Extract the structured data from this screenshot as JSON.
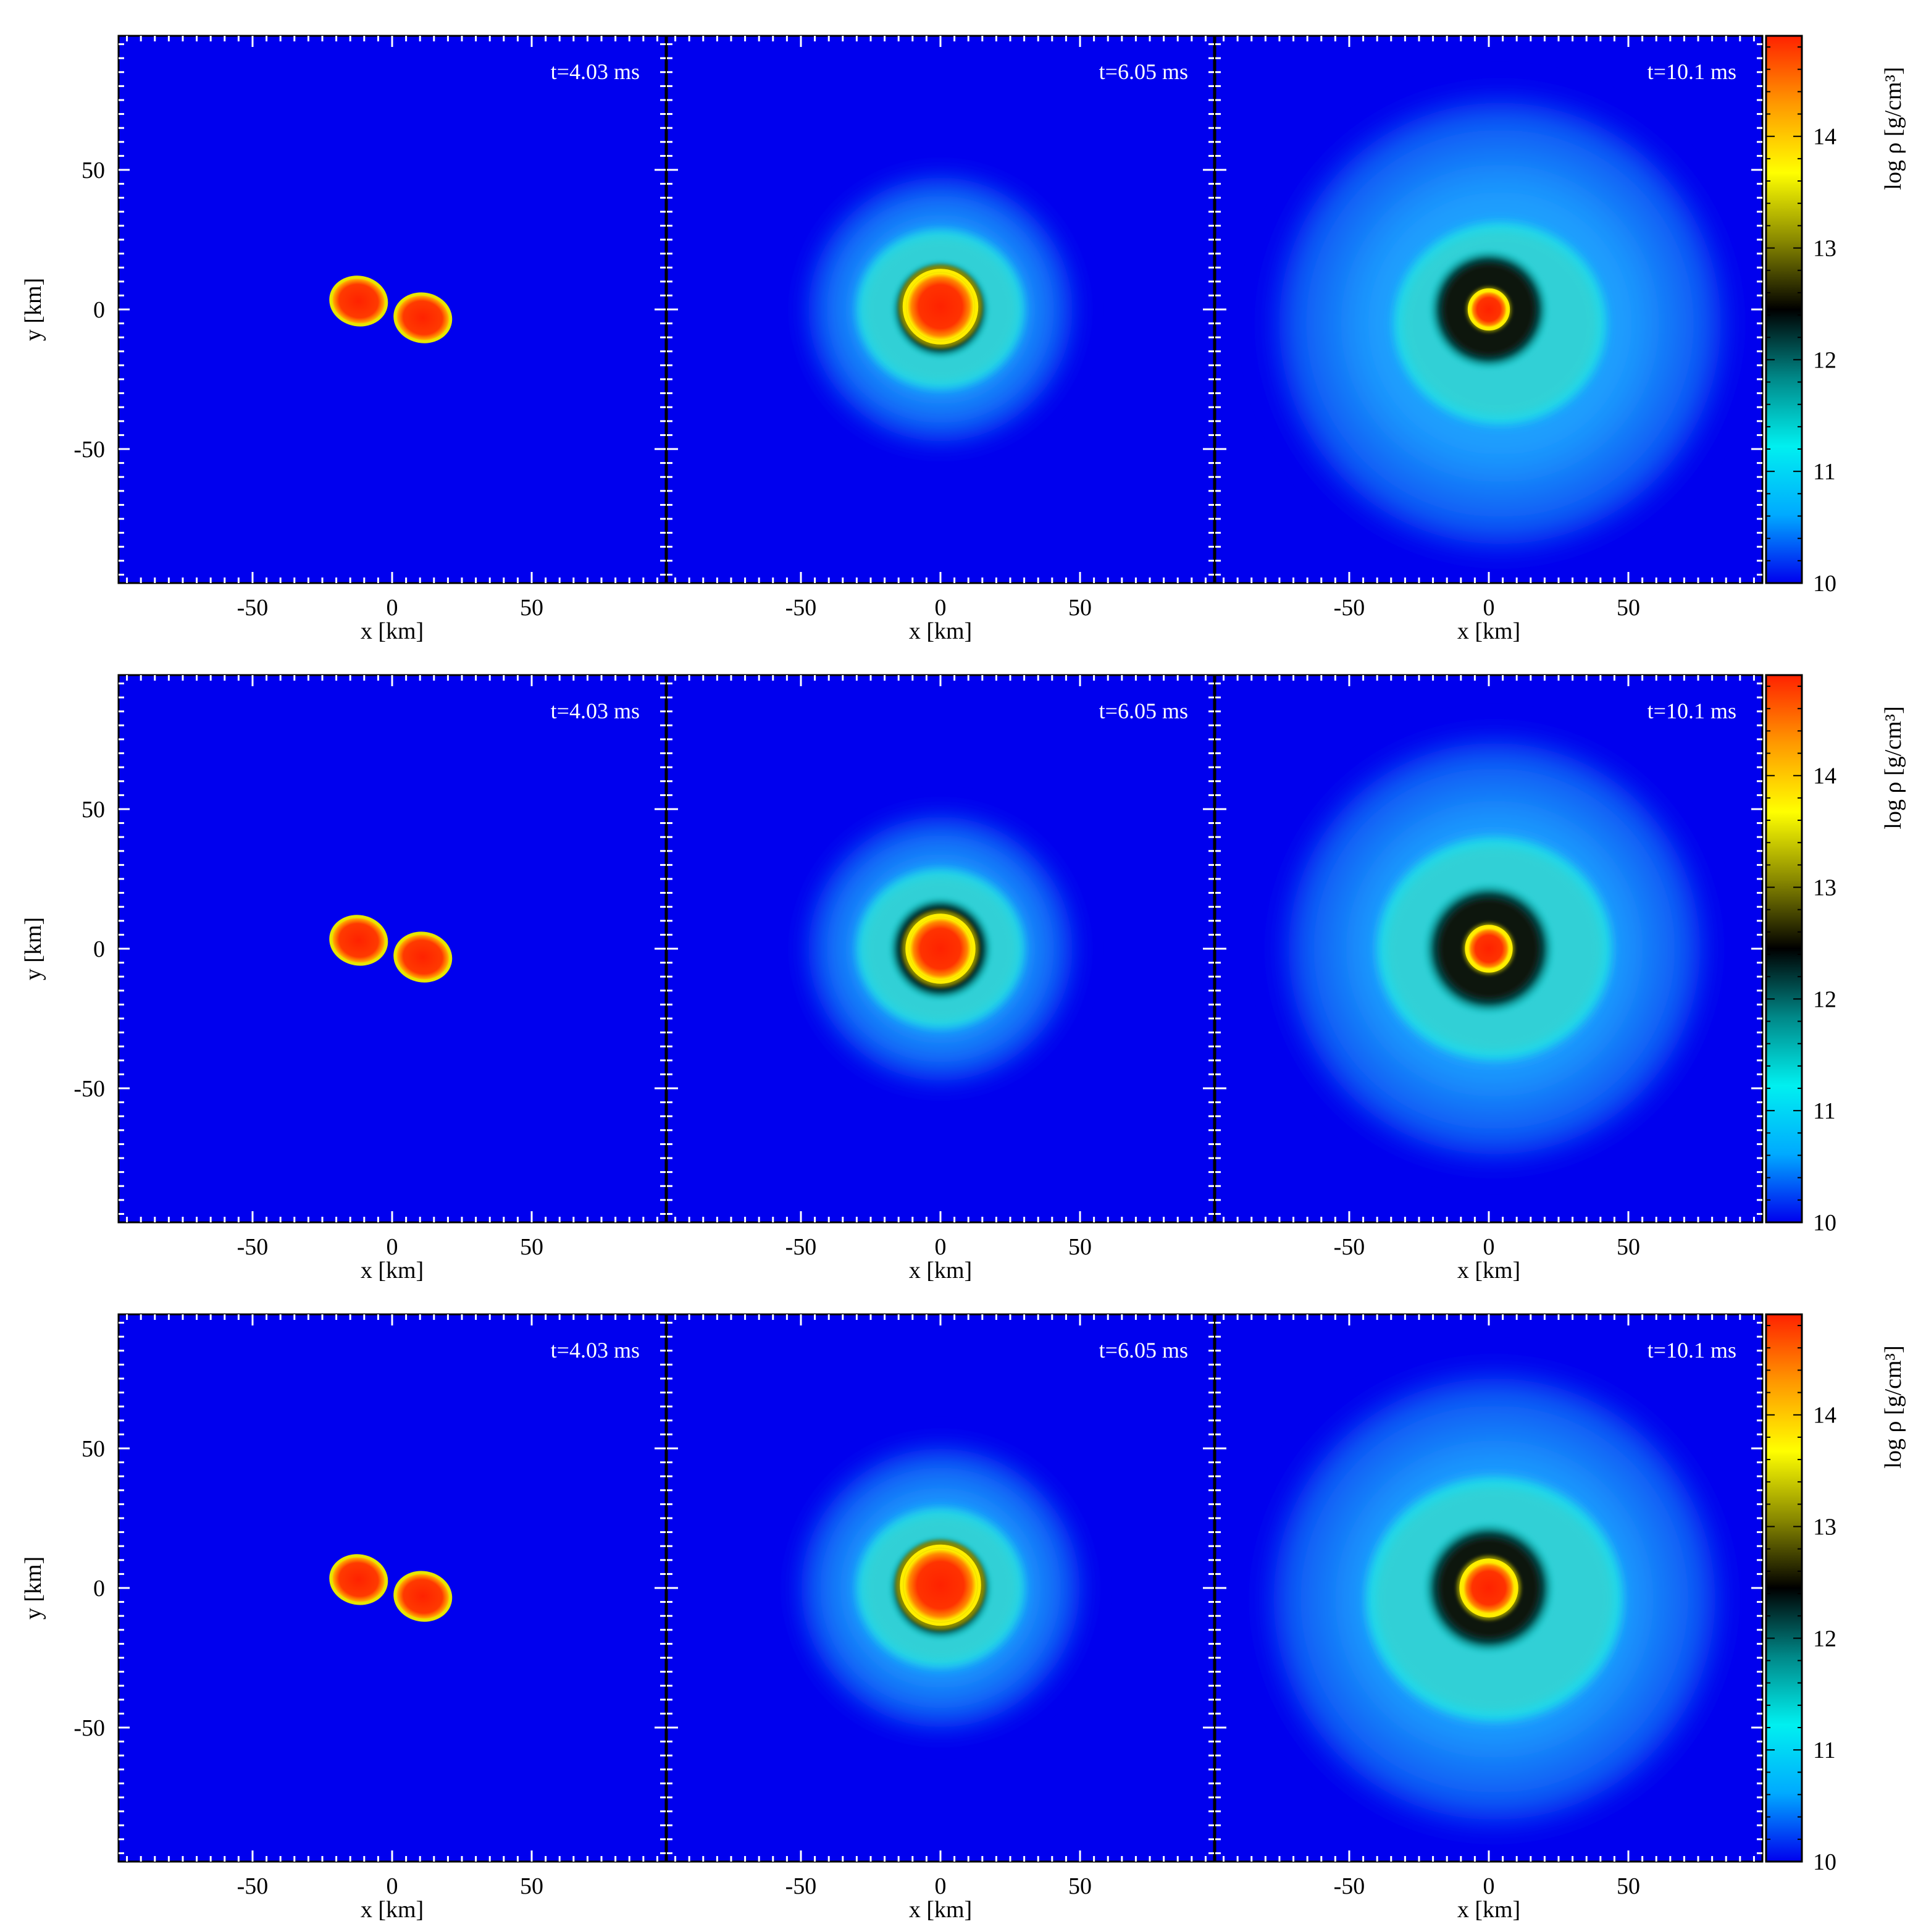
{
  "chart_data": {
    "type": "heatmap",
    "colormap_stops": [
      "#0000ee",
      "#00aaff",
      "#00f0f0",
      "#008888",
      "#000000",
      "#888800",
      "#ffff00",
      "#ff9900",
      "#ff2200"
    ],
    "colorbar": {
      "label": "log ρ [g/cm³]",
      "range": [
        10,
        14.9
      ],
      "ticks": [
        "10",
        "11",
        "12",
        "13",
        "14"
      ]
    },
    "axes": {
      "xlabel": "x [km]",
      "ylabel": "y [km]",
      "xlim": [
        -98,
        98
      ],
      "ylim": [
        -98,
        98
      ],
      "ticks": [
        "-50",
        "0",
        "50"
      ]
    },
    "rows": [
      {
        "panels": [
          {
            "time": "t=4.03 ms",
            "stage": "binary",
            "stars": [
              {
                "x": -12,
                "y": 3,
                "rx": 10,
                "ry": 8.5,
                "rot": 10
              },
              {
                "x": 11,
                "y": -3,
                "rx": 10,
                "ry": 8.5,
                "rot": 10
              }
            ]
          },
          {
            "time": "t=6.05 ms",
            "stage": "merger",
            "envelope_radius": 52,
            "ring_radius": 30,
            "black_radius": 18,
            "core_radius": 13,
            "core_offset": [
              0,
              1
            ]
          },
          {
            "time": "t=10.1 ms",
            "stage": "remnant",
            "envelope_radius": 88,
            "ring_radius": 38,
            "black_radius": 22,
            "core_radius": 7,
            "core_offset": [
              0,
              0
            ],
            "ring_center": [
              4,
              -5
            ]
          }
        ]
      },
      {
        "panels": [
          {
            "time": "t=4.03 ms",
            "stage": "binary",
            "stars": [
              {
                "x": -12,
                "y": 3,
                "rx": 10,
                "ry": 8.5,
                "rot": 10
              },
              {
                "x": 11,
                "y": -3,
                "rx": 10,
                "ry": 8.5,
                "rot": 10
              }
            ]
          },
          {
            "time": "t=6.05 ms",
            "stage": "merger",
            "envelope_radius": 52,
            "ring_radius": 30,
            "black_radius": 19,
            "core_radius": 12,
            "core_offset": [
              0,
              0
            ]
          },
          {
            "time": "t=10.1 ms",
            "stage": "remnant",
            "envelope_radius": 82,
            "ring_radius": 42,
            "black_radius": 24,
            "core_radius": 8,
            "core_offset": [
              0,
              0
            ],
            "ring_center": [
              2,
              0
            ]
          }
        ]
      },
      {
        "panels": [
          {
            "time": "t=4.03 ms",
            "stage": "binary",
            "stars": [
              {
                "x": -12,
                "y": 3,
                "rx": 10,
                "ry": 8.5,
                "rot": 10
              },
              {
                "x": 11,
                "y": -3,
                "rx": 10,
                "ry": 8.5,
                "rot": 10
              }
            ]
          },
          {
            "time": "t=6.05 ms",
            "stage": "merger",
            "envelope_radius": 55,
            "ring_radius": 30,
            "black_radius": 19,
            "core_radius": 14,
            "core_offset": [
              0,
              1
            ]
          },
          {
            "time": "t=10.1 ms",
            "stage": "remnant",
            "envelope_radius": 88,
            "ring_radius": 46,
            "black_radius": 24,
            "core_radius": 10,
            "core_offset": [
              0,
              0
            ],
            "ring_center": [
              2,
              -4
            ]
          }
        ]
      }
    ]
  }
}
